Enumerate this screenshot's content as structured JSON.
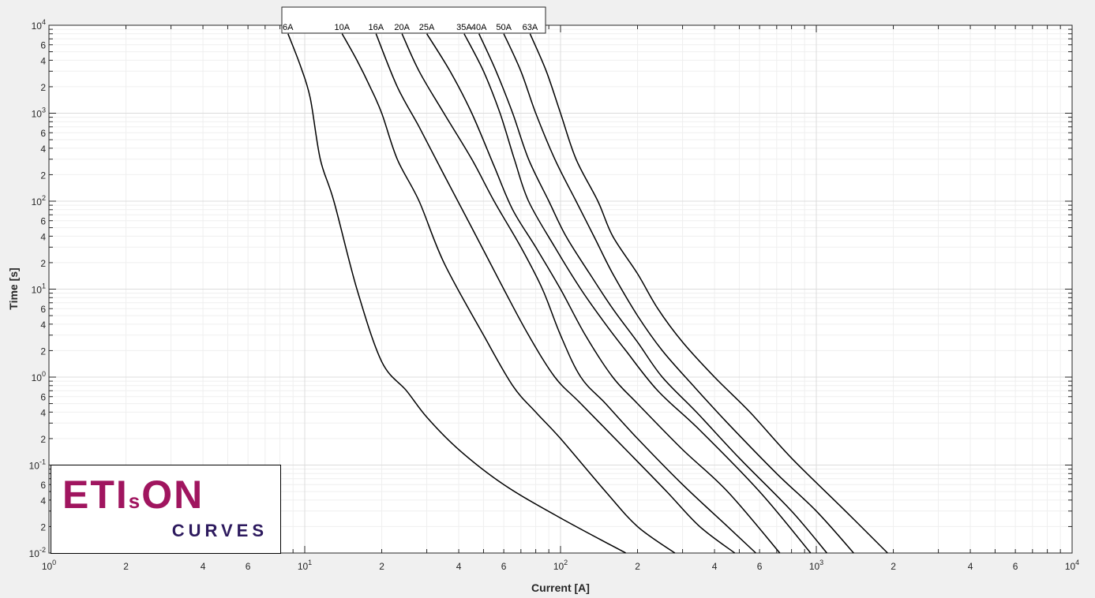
{
  "chart_data": {
    "type": "line",
    "title": "",
    "xlabel": "Current [A]",
    "ylabel": "Time [s]",
    "xscale": "log",
    "yscale": "log",
    "xlim": [
      1,
      10000
    ],
    "ylim": [
      0.01,
      10000
    ],
    "grid": true,
    "legend": "labels at top of each curve",
    "x_tick_labels": [
      {
        "value": 1,
        "mantissa": "10",
        "exponent": "0"
      },
      {
        "value": 2,
        "mantissa": "2",
        "exponent": ""
      },
      {
        "value": 4,
        "mantissa": "4",
        "exponent": ""
      },
      {
        "value": 6,
        "mantissa": "6",
        "exponent": ""
      },
      {
        "value": 10,
        "mantissa": "10",
        "exponent": "1"
      },
      {
        "value": 20,
        "mantissa": "2",
        "exponent": ""
      },
      {
        "value": 40,
        "mantissa": "4",
        "exponent": ""
      },
      {
        "value": 60,
        "mantissa": "6",
        "exponent": ""
      },
      {
        "value": 100,
        "mantissa": "10",
        "exponent": "2"
      },
      {
        "value": 200,
        "mantissa": "2",
        "exponent": ""
      },
      {
        "value": 400,
        "mantissa": "4",
        "exponent": ""
      },
      {
        "value": 600,
        "mantissa": "6",
        "exponent": ""
      },
      {
        "value": 1000,
        "mantissa": "10",
        "exponent": "3"
      },
      {
        "value": 2000,
        "mantissa": "2",
        "exponent": ""
      },
      {
        "value": 4000,
        "mantissa": "4",
        "exponent": ""
      },
      {
        "value": 6000,
        "mantissa": "6",
        "exponent": ""
      },
      {
        "value": 10000,
        "mantissa": "10",
        "exponent": "4"
      }
    ],
    "y_tick_labels": [
      {
        "value": 0.01,
        "mantissa": "10",
        "exponent": "-2"
      },
      {
        "value": 0.02,
        "mantissa": "2",
        "exponent": ""
      },
      {
        "value": 0.04,
        "mantissa": "4",
        "exponent": ""
      },
      {
        "value": 0.06,
        "mantissa": "6",
        "exponent": ""
      },
      {
        "value": 0.1,
        "mantissa": "10",
        "exponent": "-1"
      },
      {
        "value": 0.2,
        "mantissa": "2",
        "exponent": ""
      },
      {
        "value": 0.4,
        "mantissa": "4",
        "exponent": ""
      },
      {
        "value": 0.6,
        "mantissa": "6",
        "exponent": ""
      },
      {
        "value": 1,
        "mantissa": "10",
        "exponent": "0"
      },
      {
        "value": 2,
        "mantissa": "2",
        "exponent": ""
      },
      {
        "value": 4,
        "mantissa": "4",
        "exponent": ""
      },
      {
        "value": 6,
        "mantissa": "6",
        "exponent": ""
      },
      {
        "value": 10,
        "mantissa": "10",
        "exponent": "1"
      },
      {
        "value": 20,
        "mantissa": "2",
        "exponent": ""
      },
      {
        "value": 40,
        "mantissa": "4",
        "exponent": ""
      },
      {
        "value": 60,
        "mantissa": "6",
        "exponent": ""
      },
      {
        "value": 100,
        "mantissa": "10",
        "exponent": "2"
      },
      {
        "value": 200,
        "mantissa": "2",
        "exponent": ""
      },
      {
        "value": 400,
        "mantissa": "4",
        "exponent": ""
      },
      {
        "value": 600,
        "mantissa": "6",
        "exponent": ""
      },
      {
        "value": 1000,
        "mantissa": "10",
        "exponent": "3"
      },
      {
        "value": 2000,
        "mantissa": "2",
        "exponent": ""
      },
      {
        "value": 4000,
        "mantissa": "4",
        "exponent": ""
      },
      {
        "value": 6000,
        "mantissa": "6",
        "exponent": ""
      },
      {
        "value": 10000,
        "mantissa": "10",
        "exponent": "4"
      }
    ],
    "series": [
      {
        "name": "6A",
        "points": [
          [
            8.6,
            8000
          ],
          [
            9.6,
            3500
          ],
          [
            10.5,
            1500
          ],
          [
            11.5,
            300
          ],
          [
            13,
            100
          ],
          [
            16,
            10
          ],
          [
            20,
            1.5
          ],
          [
            25,
            0.7
          ],
          [
            30,
            0.35
          ],
          [
            40,
            0.15
          ],
          [
            60,
            0.06
          ],
          [
            100,
            0.025
          ],
          [
            180,
            0.01
          ]
        ]
      },
      {
        "name": "10A",
        "points": [
          [
            14,
            8000
          ],
          [
            16,
            4000
          ],
          [
            18,
            2000
          ],
          [
            20,
            1000
          ],
          [
            23,
            300
          ],
          [
            28,
            100
          ],
          [
            35,
            20
          ],
          [
            50,
            3
          ],
          [
            65,
            0.8
          ],
          [
            80,
            0.4
          ],
          [
            100,
            0.2
          ],
          [
            150,
            0.05
          ],
          [
            200,
            0.02
          ],
          [
            280,
            0.01
          ]
        ]
      },
      {
        "name": "16A",
        "points": [
          [
            19,
            8000
          ],
          [
            23,
            2000
          ],
          [
            28,
            700
          ],
          [
            35,
            200
          ],
          [
            45,
            50
          ],
          [
            60,
            10
          ],
          [
            75,
            3
          ],
          [
            95,
            1
          ],
          [
            120,
            0.5
          ],
          [
            180,
            0.15
          ],
          [
            260,
            0.05
          ],
          [
            350,
            0.02
          ],
          [
            480,
            0.01
          ]
        ]
      },
      {
        "name": "20A",
        "points": [
          [
            24,
            8000
          ],
          [
            28,
            3000
          ],
          [
            35,
            1000
          ],
          [
            45,
            300
          ],
          [
            55,
            100
          ],
          [
            70,
            30
          ],
          [
            85,
            10
          ],
          [
            100,
            3
          ],
          [
            120,
            1
          ],
          [
            150,
            0.5
          ],
          [
            200,
            0.2
          ],
          [
            300,
            0.06
          ],
          [
            450,
            0.02
          ],
          [
            580,
            0.01
          ]
        ]
      },
      {
        "name": "25A",
        "points": [
          [
            30,
            8000
          ],
          [
            37,
            3000
          ],
          [
            45,
            1000
          ],
          [
            55,
            250
          ],
          [
            65,
            80
          ],
          [
            80,
            30
          ],
          [
            100,
            10
          ],
          [
            125,
            3
          ],
          [
            160,
            1
          ],
          [
            200,
            0.5
          ],
          [
            300,
            0.15
          ],
          [
            450,
            0.05
          ],
          [
            720,
            0.01
          ]
        ]
      },
      {
        "name": "35A",
        "points": [
          [
            42,
            8000
          ],
          [
            50,
            3000
          ],
          [
            58,
            1000
          ],
          [
            66,
            300
          ],
          [
            75,
            100
          ],
          [
            95,
            30
          ],
          [
            120,
            10
          ],
          [
            150,
            4
          ],
          [
            180,
            2
          ],
          [
            240,
            0.7
          ],
          [
            350,
            0.25
          ],
          [
            600,
            0.05
          ],
          [
            950,
            0.01
          ]
        ]
      },
      {
        "name": "40A",
        "points": [
          [
            48,
            8000
          ],
          [
            56,
            3000
          ],
          [
            65,
            1000
          ],
          [
            75,
            300
          ],
          [
            90,
            100
          ],
          [
            105,
            40
          ],
          [
            130,
            15
          ],
          [
            160,
            6
          ],
          [
            200,
            2.5
          ],
          [
            250,
            1
          ],
          [
            340,
            0.4
          ],
          [
            500,
            0.12
          ],
          [
            800,
            0.03
          ],
          [
            1100,
            0.01
          ]
        ]
      },
      {
        "name": "50A",
        "points": [
          [
            60,
            8000
          ],
          [
            70,
            3000
          ],
          [
            80,
            1000
          ],
          [
            95,
            300
          ],
          [
            115,
            100
          ],
          [
            135,
            40
          ],
          [
            160,
            15
          ],
          [
            200,
            5
          ],
          [
            250,
            2
          ],
          [
            330,
            0.8
          ],
          [
            450,
            0.3
          ],
          [
            700,
            0.08
          ],
          [
            1000,
            0.03
          ],
          [
            1400,
            0.01
          ]
        ]
      },
      {
        "name": "63A",
        "points": [
          [
            76,
            8000
          ],
          [
            88,
            3000
          ],
          [
            100,
            1000
          ],
          [
            115,
            300
          ],
          [
            140,
            100
          ],
          [
            160,
            40
          ],
          [
            200,
            15
          ],
          [
            240,
            6
          ],
          [
            300,
            2.5
          ],
          [
            400,
            1
          ],
          [
            550,
            0.4
          ],
          [
            800,
            0.12
          ],
          [
            1300,
            0.03
          ],
          [
            1900,
            0.01
          ]
        ]
      }
    ]
  },
  "logo": {
    "main_prefix": "ETI",
    "main_small": "s",
    "main_suffix": "ON",
    "subtitle": "CURVES",
    "main_color": "#a0155f",
    "subtitle_color": "#2d1a5e"
  }
}
